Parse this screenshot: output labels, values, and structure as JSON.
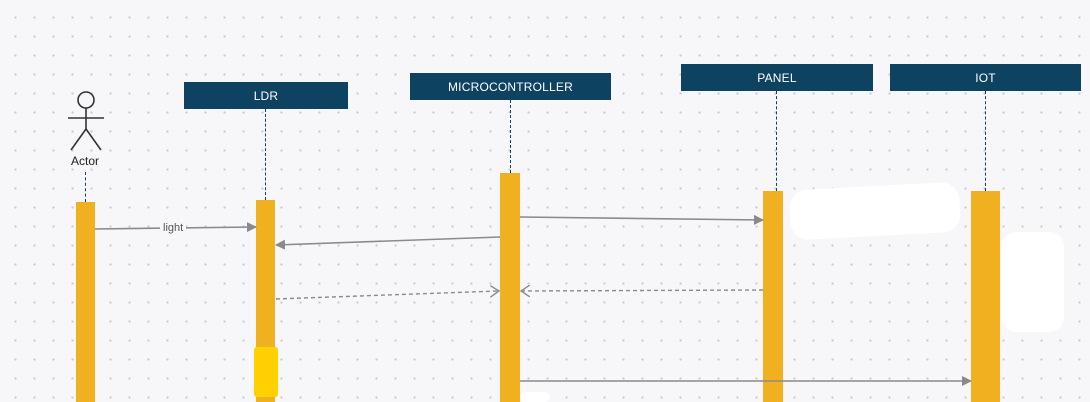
{
  "actor": {
    "label": "Actor",
    "icon": "stick-figure-icon"
  },
  "lanes": [
    {
      "id": "ldr",
      "label": "LDR"
    },
    {
      "id": "microcontroller",
      "label": "MICROCONTROLLER"
    },
    {
      "id": "panel",
      "label": "PANEL"
    },
    {
      "id": "iot",
      "label": "IOT"
    }
  ],
  "messages": [
    {
      "from": "actor",
      "to": "ldr",
      "label": "light",
      "style": "solid"
    },
    {
      "from": "microcontroller",
      "to": "panel",
      "label": "",
      "style": "solid"
    },
    {
      "from": "microcontroller",
      "to": "ldr",
      "label": "",
      "style": "solid"
    },
    {
      "from": "ldr",
      "to": "microcontroller",
      "label": "",
      "style": "dashed"
    },
    {
      "from": "panel",
      "to": "microcontroller",
      "label": "",
      "style": "dashed"
    },
    {
      "from": "microcontroller",
      "to": "iot",
      "label": "",
      "style": "solid"
    }
  ],
  "colors": {
    "header": "#0e4261",
    "activation": "#f0b020",
    "arrow": "#8a8a8a",
    "background": "#f7f7f9"
  }
}
